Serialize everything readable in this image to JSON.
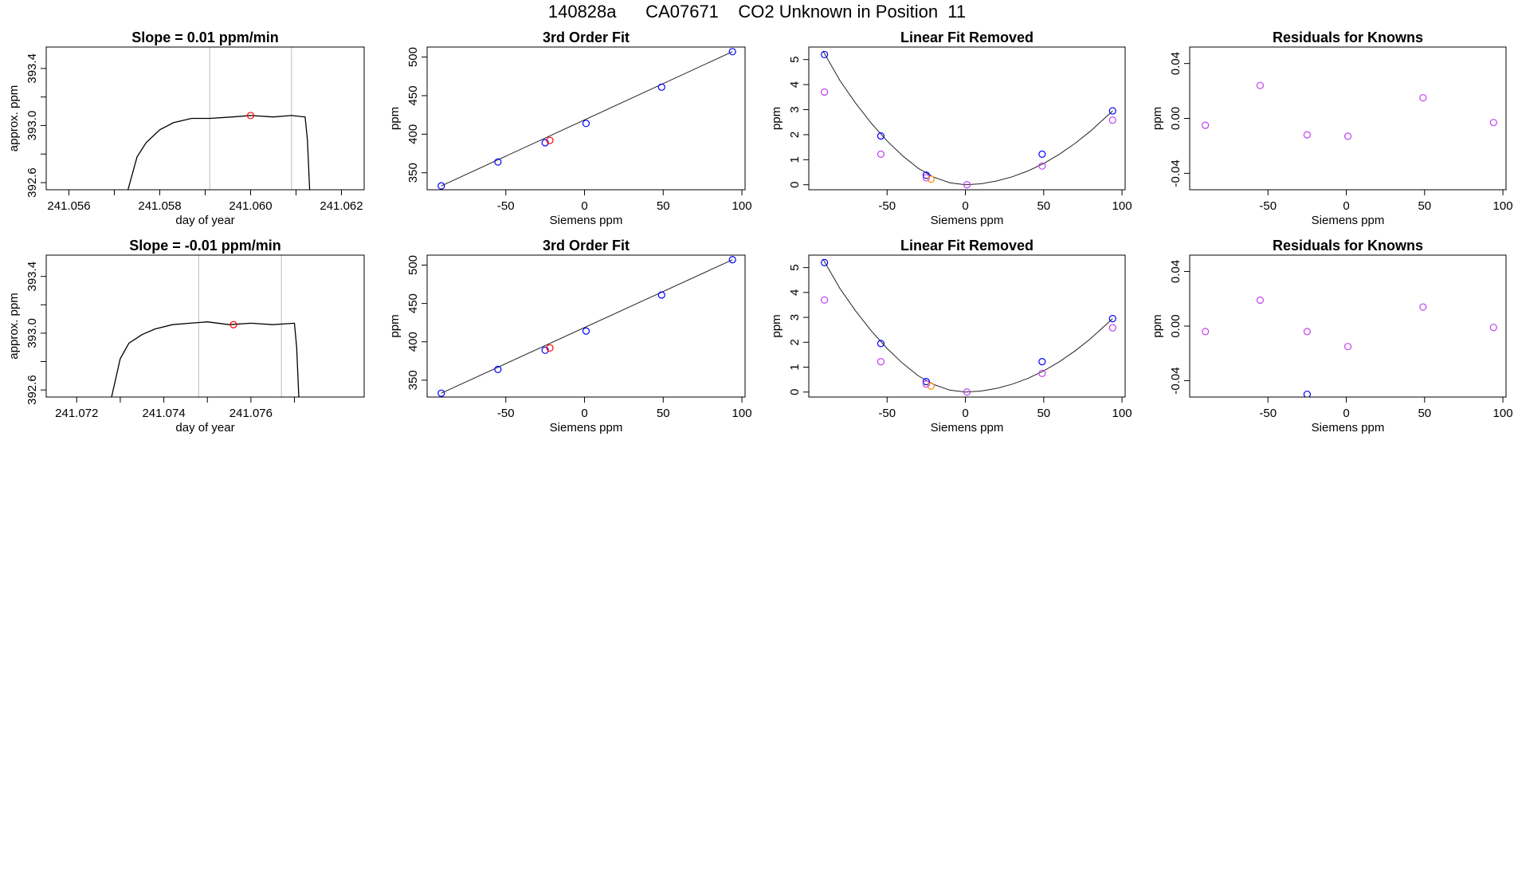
{
  "page_title": "140828a      CA07671    CO2 Unknown in Position  11",
  "colors": {
    "trace": "#000000",
    "blue": "#0000ff",
    "magenta": "#c040f0",
    "red": "#ff0000",
    "orange": "#ff8c00",
    "vline": "#bbbbbb"
  },
  "chart_data": [
    {
      "type": "line",
      "title": "Slope =  0.01  ppm/min",
      "xlabel": "day of year",
      "ylabel": "approx. ppm",
      "xlim": [
        241.0555,
        241.0625
      ],
      "ylim": [
        392.55,
        393.55
      ],
      "xticks": [
        "241.056",
        "241.058",
        "241.060",
        "241.062"
      ],
      "xtick_values": [
        241.056,
        241.058,
        241.06,
        241.062
      ],
      "minor_xticks": [
        241.057,
        241.059,
        241.061
      ],
      "yticks": [
        "392.6",
        "393.0",
        "393.4"
      ],
      "ytick_values": [
        392.6,
        393.0,
        393.4
      ],
      "minor_yticks": [
        392.8,
        393.2
      ],
      "vlines": [
        241.0591,
        241.0609
      ],
      "series": [
        {
          "x": [
            241.0573,
            241.0575,
            241.0577,
            241.058,
            241.0583,
            241.0587,
            241.0591,
            241.0596,
            241.06,
            241.0605,
            241.0609,
            241.0612,
            241.06125,
            241.0613
          ],
          "y": [
            392.55,
            392.78,
            392.88,
            392.97,
            393.02,
            393.05,
            393.05,
            393.06,
            393.07,
            393.06,
            393.07,
            393.06,
            392.9,
            392.55
          ]
        }
      ],
      "marker": {
        "x": 241.06,
        "y": 393.07,
        "color": "red"
      }
    },
    {
      "type": "scatter",
      "title": "3rd Order Fit",
      "xlabel": "Siemens ppm",
      "ylabel": "ppm",
      "xlim": [
        -100,
        102
      ],
      "ylim": [
        328,
        513
      ],
      "xticks": [
        "-50",
        "0",
        "50",
        "100"
      ],
      "xtick_values": [
        -50,
        0,
        50,
        100
      ],
      "yticks": [
        "350",
        "400",
        "450",
        "500"
      ],
      "ytick_values": [
        350,
        400,
        450,
        500
      ],
      "fit_line": {
        "x": [
          -91,
          94
        ],
        "y": [
          333,
          507
        ]
      },
      "points": [
        {
          "x": -91,
          "y": 333,
          "color": "blue"
        },
        {
          "x": -55,
          "y": 364,
          "color": "blue"
        },
        {
          "x": -25,
          "y": 389,
          "color": "blue"
        },
        {
          "x": -22,
          "y": 392,
          "color": "red"
        },
        {
          "x": 1,
          "y": 414,
          "color": "blue"
        },
        {
          "x": 49,
          "y": 461,
          "color": "blue"
        },
        {
          "x": 94,
          "y": 507,
          "color": "blue"
        }
      ]
    },
    {
      "type": "scatter",
      "title": "Linear Fit Removed",
      "xlabel": "Siemens ppm",
      "ylabel": "ppm",
      "xlim": [
        -100,
        102
      ],
      "ylim": [
        -0.2,
        5.5
      ],
      "xticks": [
        "-50",
        "0",
        "50",
        "100"
      ],
      "xtick_values": [
        -50,
        0,
        50,
        100
      ],
      "yticks": [
        "0",
        "1",
        "2",
        "3",
        "4",
        "5"
      ],
      "ytick_values": [
        0,
        1,
        2,
        3,
        4,
        5
      ],
      "curve": {
        "x": [
          -91,
          -80,
          -70,
          -60,
          -50,
          -40,
          -30,
          -20,
          -10,
          0,
          10,
          20,
          30,
          40,
          50,
          60,
          70,
          80,
          94
        ],
        "y": [
          5.35,
          4.15,
          3.25,
          2.45,
          1.75,
          1.15,
          0.65,
          0.3,
          0.08,
          0.0,
          0.04,
          0.15,
          0.32,
          0.55,
          0.85,
          1.22,
          1.65,
          2.15,
          2.95
        ]
      },
      "points": [
        {
          "x": -90,
          "y": 5.2,
          "color": "blue"
        },
        {
          "x": -90,
          "y": 3.7,
          "color": "magenta"
        },
        {
          "x": -54,
          "y": 1.95,
          "color": "blue"
        },
        {
          "x": -54,
          "y": 1.22,
          "color": "magenta"
        },
        {
          "x": -25,
          "y": 0.38,
          "color": "blue"
        },
        {
          "x": -25,
          "y": 0.28,
          "color": "magenta"
        },
        {
          "x": -22,
          "y": 0.22,
          "color": "orange"
        },
        {
          "x": 1,
          "y": 0.0,
          "color": "magenta"
        },
        {
          "x": 49,
          "y": 1.22,
          "color": "blue"
        },
        {
          "x": 49,
          "y": 0.75,
          "color": "magenta"
        },
        {
          "x": 94,
          "y": 2.95,
          "color": "blue"
        },
        {
          "x": 94,
          "y": 2.58,
          "color": "magenta"
        }
      ]
    },
    {
      "type": "scatter",
      "title": "Residuals for Knowns",
      "xlabel": "Siemens ppm",
      "ylabel": "ppm",
      "xlim": [
        -100,
        102
      ],
      "ylim": [
        -0.052,
        0.052
      ],
      "xticks": [
        "-50",
        "0",
        "50",
        "100"
      ],
      "xtick_values": [
        -50,
        0,
        50,
        100
      ],
      "yticks": [
        "-0.04",
        "0.00",
        "0.04"
      ],
      "ytick_values": [
        -0.04,
        0.0,
        0.04
      ],
      "points": [
        {
          "x": -90,
          "y": -0.005,
          "color": "magenta"
        },
        {
          "x": -55,
          "y": 0.024,
          "color": "magenta"
        },
        {
          "x": -25,
          "y": -0.012,
          "color": "magenta"
        },
        {
          "x": 1,
          "y": -0.013,
          "color": "magenta"
        },
        {
          "x": 49,
          "y": 0.015,
          "color": "magenta"
        },
        {
          "x": 94,
          "y": -0.003,
          "color": "magenta"
        }
      ]
    },
    {
      "type": "line",
      "title": "Slope =  -0.01  ppm/min",
      "xlabel": "day of year",
      "ylabel": "approx. ppm",
      "xlim": [
        241.0713,
        241.0786
      ],
      "ylim": [
        392.55,
        393.55
      ],
      "xticks": [
        "241.072",
        "241.074",
        "241.076"
      ],
      "xtick_values": [
        241.072,
        241.074,
        241.076
      ],
      "minor_xticks": [
        241.073,
        241.075,
        241.077
      ],
      "yticks": [
        "392.6",
        "393.0",
        "393.4"
      ],
      "ytick_values": [
        392.6,
        393.0,
        393.4
      ],
      "minor_yticks": [
        392.8,
        393.2
      ],
      "vlines": [
        241.0748,
        241.0767
      ],
      "series": [
        {
          "x": [
            241.0728,
            241.073,
            241.0732,
            241.0735,
            241.0738,
            241.0742,
            241.0746,
            241.075,
            241.0755,
            241.076,
            241.0765,
            241.077,
            241.07705,
            241.0771
          ],
          "y": [
            392.55,
            392.82,
            392.93,
            392.99,
            393.03,
            393.06,
            393.07,
            393.08,
            393.06,
            393.07,
            393.06,
            393.07,
            392.9,
            392.55
          ]
        }
      ],
      "marker": {
        "x": 241.0756,
        "y": 393.06,
        "color": "red"
      }
    },
    {
      "type": "scatter",
      "title": "3rd Order Fit",
      "xlabel": "Siemens ppm",
      "ylabel": "ppm",
      "xlim": [
        -100,
        102
      ],
      "ylim": [
        328,
        513
      ],
      "xticks": [
        "-50",
        "0",
        "50",
        "100"
      ],
      "xtick_values": [
        -50,
        0,
        50,
        100
      ],
      "yticks": [
        "350",
        "400",
        "450",
        "500"
      ],
      "ytick_values": [
        350,
        400,
        450,
        500
      ],
      "fit_line": {
        "x": [
          -91,
          94
        ],
        "y": [
          333,
          507
        ]
      },
      "points": [
        {
          "x": -91,
          "y": 333,
          "color": "blue"
        },
        {
          "x": -55,
          "y": 364,
          "color": "blue"
        },
        {
          "x": -25,
          "y": 389,
          "color": "blue"
        },
        {
          "x": -22,
          "y": 392,
          "color": "red"
        },
        {
          "x": 1,
          "y": 414,
          "color": "blue"
        },
        {
          "x": 49,
          "y": 461,
          "color": "blue"
        },
        {
          "x": 94,
          "y": 507,
          "color": "blue"
        }
      ]
    },
    {
      "type": "scatter",
      "title": "Linear Fit Removed",
      "xlabel": "Siemens ppm",
      "ylabel": "ppm",
      "xlim": [
        -100,
        102
      ],
      "ylim": [
        -0.2,
        5.5
      ],
      "xticks": [
        "-50",
        "0",
        "50",
        "100"
      ],
      "xtick_values": [
        -50,
        0,
        50,
        100
      ],
      "yticks": [
        "0",
        "1",
        "2",
        "3",
        "4",
        "5"
      ],
      "ytick_values": [
        0,
        1,
        2,
        3,
        4,
        5
      ],
      "curve": {
        "x": [
          -91,
          -80,
          -70,
          -60,
          -50,
          -40,
          -30,
          -20,
          -10,
          0,
          10,
          20,
          30,
          40,
          50,
          60,
          70,
          80,
          94
        ],
        "y": [
          5.35,
          4.15,
          3.25,
          2.45,
          1.75,
          1.15,
          0.65,
          0.3,
          0.08,
          0.0,
          0.04,
          0.15,
          0.32,
          0.55,
          0.85,
          1.22,
          1.65,
          2.15,
          2.95
        ]
      },
      "points": [
        {
          "x": -90,
          "y": 5.2,
          "color": "blue"
        },
        {
          "x": -90,
          "y": 3.7,
          "color": "magenta"
        },
        {
          "x": -54,
          "y": 1.95,
          "color": "blue"
        },
        {
          "x": -54,
          "y": 1.22,
          "color": "magenta"
        },
        {
          "x": -25,
          "y": 0.42,
          "color": "blue"
        },
        {
          "x": -25,
          "y": 0.32,
          "color": "magenta"
        },
        {
          "x": -22,
          "y": 0.24,
          "color": "orange"
        },
        {
          "x": 1,
          "y": 0.0,
          "color": "magenta"
        },
        {
          "x": 49,
          "y": 1.22,
          "color": "blue"
        },
        {
          "x": 49,
          "y": 0.75,
          "color": "magenta"
        },
        {
          "x": 94,
          "y": 2.95,
          "color": "blue"
        },
        {
          "x": 94,
          "y": 2.58,
          "color": "magenta"
        }
      ]
    },
    {
      "type": "scatter",
      "title": "Residuals for Knowns",
      "xlabel": "Siemens ppm",
      "ylabel": "ppm",
      "xlim": [
        -100,
        102
      ],
      "ylim": [
        -0.052,
        0.052
      ],
      "xticks": [
        "-50",
        "0",
        "50",
        "100"
      ],
      "xtick_values": [
        -50,
        0,
        50,
        100
      ],
      "yticks": [
        "-0.04",
        "0.00",
        "0.04"
      ],
      "ytick_values": [
        -0.04,
        0.0,
        0.04
      ],
      "points": [
        {
          "x": -90,
          "y": -0.004,
          "color": "magenta"
        },
        {
          "x": -55,
          "y": 0.019,
          "color": "magenta"
        },
        {
          "x": -25,
          "y": -0.004,
          "color": "magenta"
        },
        {
          "x": -25,
          "y": -0.05,
          "color": "blue"
        },
        {
          "x": 1,
          "y": -0.015,
          "color": "magenta"
        },
        {
          "x": 49,
          "y": 0.014,
          "color": "magenta"
        },
        {
          "x": 94,
          "y": -0.001,
          "color": "magenta"
        }
      ]
    }
  ]
}
